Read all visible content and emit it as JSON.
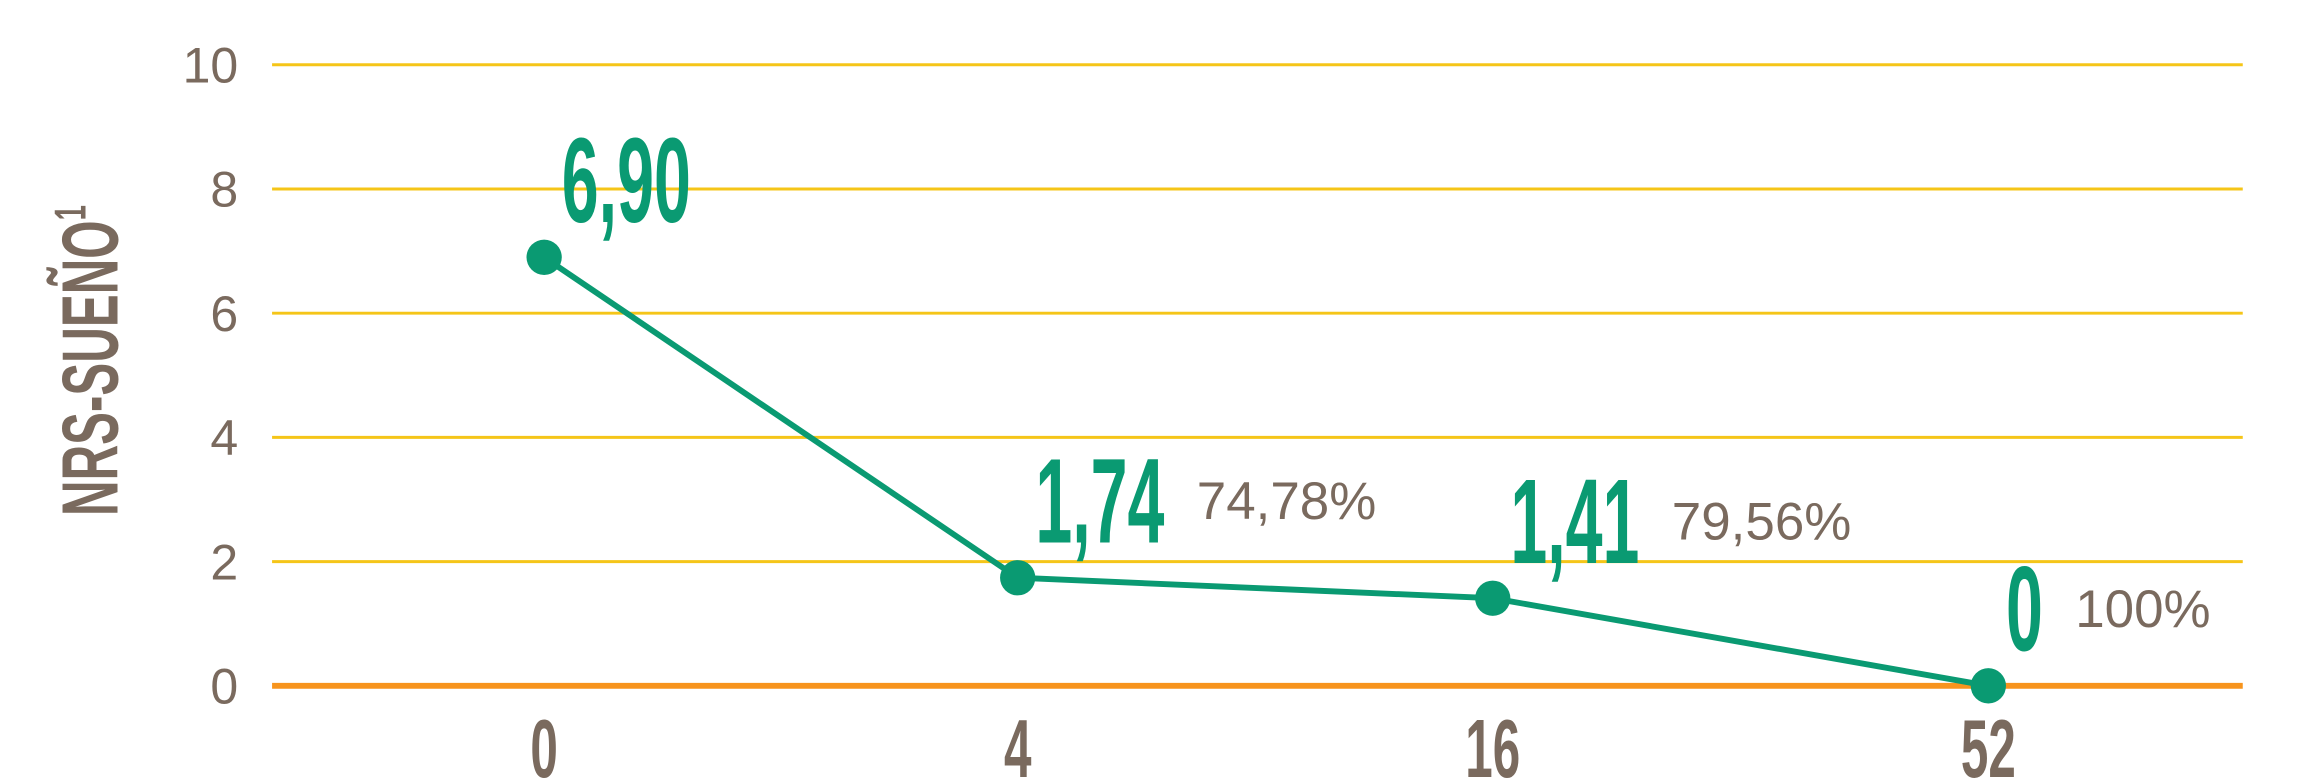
{
  "chart_data": {
    "type": "line",
    "ylabel": "NRS-SUEÑO",
    "ylabel_superscript": "1",
    "categories": [
      "0",
      "4",
      "16",
      "52"
    ],
    "series": [
      {
        "color": "#0a9a72",
        "values": [
          6.9,
          1.74,
          1.41,
          0
        ],
        "value_labels": [
          "6,90",
          "1,74",
          "1,41",
          "0"
        ]
      }
    ],
    "annotations": [
      null,
      "74,78%",
      "79,56%",
      "100%"
    ],
    "ylim": [
      0,
      10
    ],
    "yticks": [
      0,
      2,
      4,
      6,
      8,
      10
    ],
    "grid": true,
    "grid_color": "#f5c518",
    "baseline_color": "#f7941d"
  }
}
